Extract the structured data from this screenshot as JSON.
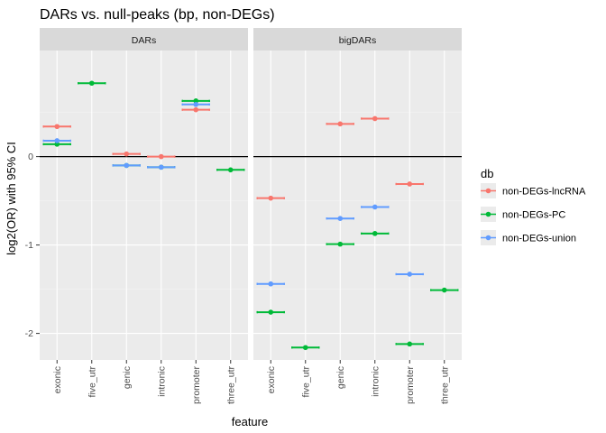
{
  "chart_data": {
    "type": "errorbar",
    "title": "DARs vs. null-peaks (bp, non-DEGs)",
    "xlabel": "feature",
    "ylabel": "log2(OR) with 95% CI",
    "ylim": [
      -2.3,
      1.2
    ],
    "y_ticks": [
      -2,
      -1,
      0
    ],
    "y_tick_labels": [
      "-2",
      "-1",
      "0"
    ],
    "grid": true,
    "reference_line_y": 0,
    "legend_position": "right",
    "legend_title": "db",
    "categories": [
      "exonic",
      "five_utr",
      "genic",
      "intronic",
      "promoter",
      "three_utr"
    ],
    "facets": [
      "DARs",
      "bigDARs"
    ],
    "series": [
      {
        "name": "non-DEGs-lncRNA",
        "color": "#F8766D",
        "values": {
          "DARs": [
            0.34,
            null,
            0.03,
            0.0,
            0.53,
            null
          ],
          "bigDARs": [
            -0.47,
            null,
            0.37,
            0.43,
            -0.31,
            null
          ]
        }
      },
      {
        "name": "non-DEGs-PC",
        "color": "#00BA38",
        "values": {
          "DARs": [
            0.14,
            0.83,
            -0.1,
            -0.12,
            0.63,
            -0.15
          ],
          "bigDARs": [
            -1.76,
            -2.16,
            -0.99,
            -0.87,
            -2.12,
            -1.51
          ]
        }
      },
      {
        "name": "non-DEGs-union",
        "color": "#619CFF",
        "values": {
          "DARs": [
            0.18,
            null,
            -0.1,
            -0.12,
            0.59,
            null
          ],
          "bigDARs": [
            -1.44,
            null,
            -0.7,
            -0.57,
            -1.33,
            null
          ]
        }
      }
    ]
  }
}
